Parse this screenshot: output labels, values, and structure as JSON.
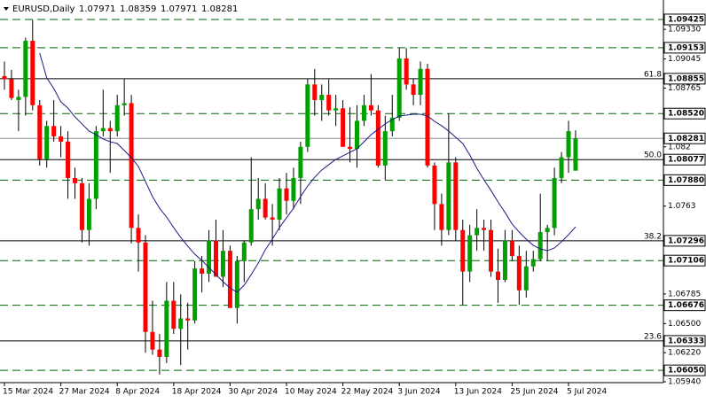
{
  "chart_data": {
    "type": "candlestick",
    "title": "EURUSD,Daily",
    "up_color": "#00a000",
    "down_color": "#ff0000",
    "wick_color": "#000000",
    "ylim": [
      1.05932,
      1.09544
    ],
    "yticks": [
      {
        "value": 1.0933,
        "label": "1.09330"
      },
      1.09045,
      1.08765,
      1.082,
      1.0763,
      1.06785,
      {
        "value": 1.065,
        "label": "1.06500"
      },
      {
        "value": 1.0622,
        "label": "1.06220"
      },
      {
        "value": 1.0594,
        "label": "1.05940"
      }
    ],
    "levels": [
      {
        "price": 1.09425,
        "style": "dashed",
        "color": "#006400"
      },
      {
        "price": 1.09153,
        "style": "dashed",
        "color": "#006400"
      },
      {
        "price": 1.08855,
        "style": "solid",
        "color": "#000000",
        "fib": "61.8"
      },
      {
        "price": {
          "value": 1.0852,
          "label": "1.08520"
        },
        "style": "dashed",
        "color": "#006400"
      },
      {
        "price": 1.08281,
        "style": "solid",
        "color": "#8a8a9a"
      },
      {
        "price": 1.08077,
        "style": "solid",
        "color": "#000000",
        "fib": "50.0"
      },
      {
        "price": {
          "value": 1.0788,
          "label": "1.07880"
        },
        "style": "dashed",
        "color": "#006400"
      },
      {
        "price": 1.07296,
        "style": "solid",
        "color": "#000000",
        "fib": "38.2"
      },
      {
        "price": 1.07106,
        "style": "dashed",
        "color": "#006400"
      },
      {
        "price": 1.06676,
        "style": "dashed",
        "color": "#006400"
      },
      {
        "price": 1.06333,
        "style": "solid",
        "color": "#000000",
        "fib": "23.6"
      },
      {
        "price": {
          "value": 1.0605,
          "label": "1.06050"
        },
        "style": "dashed",
        "color": "#006400"
      }
    ],
    "categories": [
      "15 Mar 2024",
      null,
      null,
      null,
      null,
      null,
      null,
      null,
      "27 Mar 2024",
      null,
      null,
      null,
      null,
      null,
      null,
      null,
      "8 Apr 2024",
      null,
      null,
      null,
      null,
      null,
      null,
      null,
      "18 Apr 2024",
      null,
      null,
      null,
      null,
      null,
      null,
      null,
      "30 Apr 2024",
      null,
      null,
      null,
      null,
      null,
      null,
      null,
      "10 May 2024",
      null,
      null,
      null,
      null,
      null,
      null,
      null,
      "22 May 2024",
      null,
      null,
      null,
      null,
      null,
      null,
      null,
      "3 Jun 2024",
      null,
      null,
      null,
      null,
      null,
      null,
      null,
      "13 Jun 2024",
      null,
      null,
      null,
      null,
      null,
      null,
      null,
      "25 Jun 2024",
      null,
      null,
      null,
      null,
      null,
      null,
      null,
      "5 Jul 2024",
      null
    ],
    "open": [
      1.0888,
      1.0885,
      1.0865,
      1.0868,
      1.0922,
      1.086,
      1.0808,
      1.084,
      1.083,
      1.0825,
      1.079,
      1.0785,
      1.074,
      1.077,
      1.0835,
      1.0838,
      1.0835,
      1.086,
      1.0862,
      1.0742,
      1.0728,
      1.0642,
      1.0625,
      1.0618,
      1.0672,
      1.0645,
      1.0655,
      1.0653,
      1.0703,
      1.0698,
      1.073,
      1.0695,
      1.072,
      1.0665,
      1.071,
      1.0728,
      1.076,
      1.077,
      1.0752,
      1.075,
      1.078,
      1.0768,
      1.079,
      1.082,
      1.088,
      1.0865,
      1.087,
      1.0855,
      1.0857,
      1.082,
      1.0818,
      1.0845,
      1.086,
      1.0855,
      1.0802,
      1.0835,
      1.0848,
      1.0905,
      1.088,
      1.087,
      1.0895,
      1.0802,
      1.0765,
      1.074,
      1.0805,
      1.074,
      1.07,
      1.0735,
      1.0742,
      1.074,
      1.07,
      1.0692,
      1.073,
      1.0715,
      1.0682,
      1.0705,
      1.0712,
      1.0738,
      1.0742,
      1.079,
      1.081,
      1.07971
    ],
    "high": [
      1.0902,
      1.0894,
      1.0875,
      1.0925,
      1.0942,
      1.0865,
      1.0845,
      1.0865,
      1.084,
      1.0835,
      1.08,
      1.079,
      1.0785,
      1.084,
      1.0875,
      1.0845,
      1.087,
      1.0885,
      1.087,
      1.0755,
      1.0735,
      1.0672,
      1.064,
      1.069,
      1.069,
      1.0678,
      1.067,
      1.071,
      1.0715,
      1.074,
      1.075,
      1.074,
      1.0725,
      1.0715,
      1.073,
      1.081,
      1.079,
      1.0785,
      1.0765,
      1.079,
      1.0795,
      1.08,
      1.0825,
      1.0885,
      1.0895,
      1.088,
      1.0885,
      1.087,
      1.0865,
      1.0858,
      1.086,
      1.087,
      1.089,
      1.086,
      1.085,
      1.087,
      1.0915,
      1.0915,
      1.0885,
      1.0902,
      1.09,
      1.0805,
      1.0775,
      1.0852,
      1.081,
      1.075,
      1.0745,
      1.076,
      1.075,
      1.075,
      1.0722,
      1.074,
      1.074,
      1.0725,
      1.072,
      1.072,
      1.0775,
      1.0745,
      1.08,
      1.0815,
      1.0845,
      1.08359
    ],
    "low": [
      1.0875,
      1.0865,
      1.0835,
      1.085,
      1.0855,
      1.0802,
      1.08,
      1.0825,
      1.081,
      1.077,
      1.077,
      1.0728,
      1.0725,
      1.076,
      1.083,
      1.0795,
      1.083,
      1.085,
      1.0727,
      1.07,
      1.0622,
      1.062,
      1.0601,
      1.0612,
      1.064,
      1.061,
      1.0625,
      1.065,
      1.068,
      1.069,
      1.0695,
      1.0685,
      1.0665,
      1.065,
      1.069,
      1.0725,
      1.075,
      1.075,
      1.0725,
      1.074,
      1.0755,
      1.076,
      1.0765,
      1.0815,
      1.085,
      1.0845,
      1.085,
      1.084,
      1.082,
      1.0805,
      1.08,
      1.084,
      1.085,
      1.08,
      1.0788,
      1.083,
      1.0845,
      1.0875,
      1.086,
      1.086,
      1.08,
      1.074,
      1.0725,
      1.0735,
      1.073,
      1.0668,
      1.069,
      1.072,
      1.072,
      1.0695,
      1.067,
      1.069,
      1.071,
      1.0668,
      1.0675,
      1.07,
      1.071,
      1.071,
      1.0735,
      1.0785,
      1.0795,
      1.07971
    ],
    "close": [
      1.0885,
      1.0867,
      1.0868,
      1.0922,
      1.086,
      1.0808,
      1.084,
      1.083,
      1.0825,
      1.079,
      1.0785,
      1.074,
      1.077,
      1.0835,
      1.0838,
      1.0835,
      1.086,
      1.0862,
      1.0742,
      1.0728,
      1.0642,
      1.0625,
      1.0618,
      1.0672,
      1.0645,
      1.0655,
      1.0653,
      1.0703,
      1.0698,
      1.073,
      1.0695,
      1.072,
      1.0665,
      1.071,
      1.0728,
      1.076,
      1.077,
      1.0752,
      1.075,
      1.078,
      1.0768,
      1.079,
      1.082,
      1.088,
      1.0865,
      1.087,
      1.0855,
      1.0857,
      1.082,
      1.0818,
      1.0845,
      1.086,
      1.0855,
      1.0802,
      1.0835,
      1.0848,
      1.0905,
      1.088,
      1.087,
      1.0895,
      1.0802,
      1.0765,
      1.074,
      1.0805,
      1.074,
      1.07,
      1.0735,
      1.0742,
      1.074,
      1.07,
      1.0692,
      1.073,
      1.0715,
      1.0682,
      1.0705,
      1.0712,
      1.0738,
      1.0742,
      1.079,
      1.081,
      1.0835,
      1.08281
    ],
    "ma": {
      "color": "#1a1a80",
      "values": [
        null,
        null,
        null,
        null,
        null,
        1.09101,
        1.08863,
        1.0876,
        1.08633,
        1.08573,
        1.08488,
        1.0842,
        1.08352,
        1.08317,
        1.08275,
        1.08249,
        1.08232,
        1.08164,
        1.08096,
        1.08011,
        1.07866,
        1.07721,
        1.0761,
        1.07525,
        1.07423,
        1.07329,
        1.07244,
        1.07167,
        1.07108,
        1.07039,
        1.06971,
        1.06903,
        1.06843,
        1.06801,
        1.06869,
        1.06971,
        1.07082,
        1.0721,
        1.07312,
        1.07423,
        1.07517,
        1.0761,
        1.07721,
        1.07823,
        1.07908,
        1.07977,
        1.08028,
        1.08079,
        1.08113,
        1.08147,
        1.08181,
        1.08249,
        1.08317,
        1.08369,
        1.0842,
        1.08462,
        1.08496,
        1.08505,
        1.08513,
        1.08513,
        1.08496,
        1.08445,
        1.08403,
        1.08352,
        1.08292,
        1.08232,
        1.08121,
        1.07994,
        1.07883,
        1.07781,
        1.0767,
        1.07568,
        1.07457,
        1.0738,
        1.07312,
        1.07252,
        1.07218,
        1.07201,
        1.07227,
        1.07287,
        1.07355,
        1.07431
      ]
    }
  }
}
